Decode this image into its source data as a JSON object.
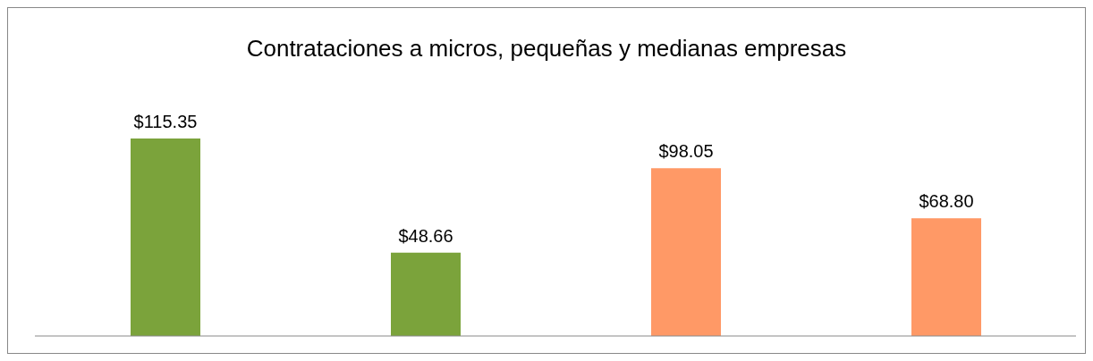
{
  "chart_data": {
    "type": "bar",
    "title": "Contrataciones a micros,  pequeñas y medianas empresas",
    "categories": [
      null,
      null,
      null,
      null
    ],
    "values": [
      115.35,
      48.66,
      98.05,
      68.8
    ],
    "colors": [
      "#7ba33b",
      "#7ba33b",
      "#ff9966",
      "#ff9966"
    ],
    "value_labels": [
      "$115.35",
      "$48.66",
      "$98.05",
      "$68.80"
    ]
  }
}
